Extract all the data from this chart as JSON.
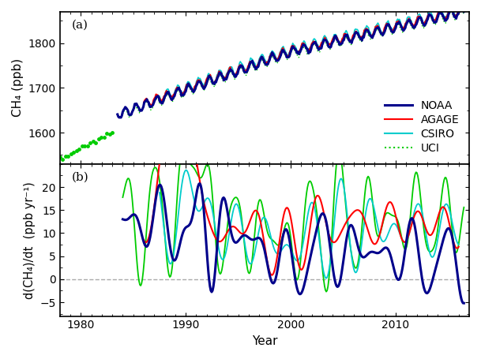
{
  "title_a": "(a)",
  "title_b": "(b)",
  "xlabel": "Year",
  "ylabel_a": "CH₄ (ppb)",
  "ylabel_b": "d(CH₄)/dt  (ppb yr⁻¹)",
  "colors": {
    "NOAA": "#00008B",
    "AGAGE": "#FF0000",
    "CSIRO": "#00CCCC",
    "UCI": "#00CC00"
  },
  "xlim": [
    1978,
    2017
  ],
  "ylim_a": [
    1530,
    1870
  ],
  "ylim_b": [
    -8,
    25
  ],
  "yticks_a": [
    1600,
    1700,
    1800
  ],
  "yticks_b": [
    -5,
    0,
    5,
    10,
    15,
    20
  ],
  "background_color": "#FFFFFF",
  "border_color": "#000000",
  "dashed_zero_color": "#AAAAAA",
  "linewidth_noaa": 2.2,
  "linewidth_agage": 1.5,
  "linewidth_csiro": 1.5,
  "linewidth_uci": 1.5,
  "fontsize_labels": 11,
  "fontsize_ticks": 10,
  "fontsize_legend": 10,
  "fontsize_panel": 11
}
